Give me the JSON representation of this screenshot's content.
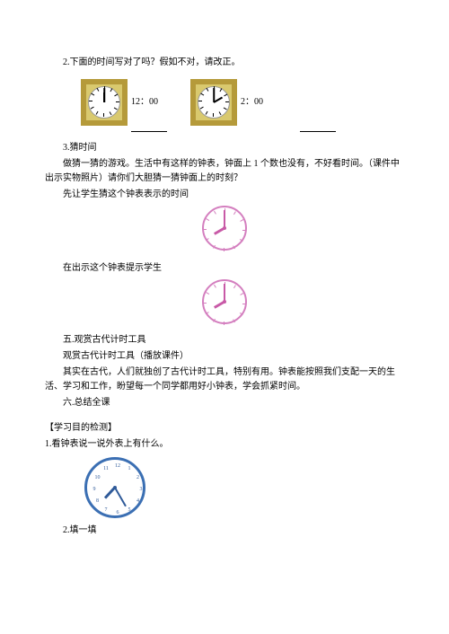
{
  "colors": {
    "text": "#000000",
    "gold_border": "#b59a3a",
    "gold_inner": "#c9b35a",
    "square_bg": "#d9c96e",
    "clock_face": "#ffffff",
    "round_border": "#d47fbf",
    "tick_pink": "#d47fbf",
    "hand_pink": "#c85aa7",
    "blue_border": "#3b6fb3",
    "blue_num": "#2f5a99",
    "blue_hand": "#2f5a99",
    "black": "#000000"
  },
  "q2": {
    "prompt": "2.下面的时间写对了吗？假如不对，请改正。",
    "clocks": [
      {
        "hour": 12,
        "minute": 0,
        "label": "12：00"
      },
      {
        "hour": 2,
        "minute": 0,
        "label": "2：00"
      }
    ]
  },
  "q3": {
    "title": "3.猜时间",
    "line1": "做猜一猜的游戏。生活中有这样的钟表，钟面上 1 个数也没有，不好看时间。（课件中出示实物照片）请你们大胆猜一猜钟面上的时刻？",
    "line2": "先让学生猜这个钟表表示的时间",
    "line3": "在出示这个钟表提示学生",
    "clock_a": {
      "hour": 8,
      "minute": 0
    },
    "clock_b": {
      "hour": 8,
      "minute": 0
    }
  },
  "sec5": {
    "title": "五.观赏古代计时工具",
    "line1": "观赏古代计时工具（播放课件）",
    "line2": "其实在古代，人们就独创了古代计时工具，特别有用。钟表能按照我们支配一天的生活、学习和工作，盼望每一个同学都用好小钟表，学会抓紧时间。",
    "line3": "六.总结全课"
  },
  "assess": {
    "header": "【学习目的检测】",
    "q1": "1.看钟表说一说外表上有什么。",
    "q2": "2.填一填",
    "clock": {
      "hour": 7,
      "minute": 25
    }
  }
}
